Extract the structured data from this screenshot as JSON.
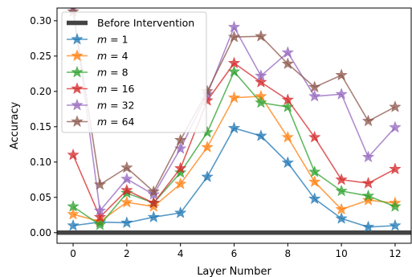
{
  "chart_data": {
    "type": "line",
    "title": "",
    "xlabel": "Layer Number",
    "ylabel": "Accuracy",
    "xlim": [
      -0.6,
      12.6
    ],
    "ylim": [
      -0.015,
      0.318
    ],
    "xticks": [
      0,
      2,
      4,
      6,
      8,
      10,
      12
    ],
    "yticks": [
      0.0,
      0.05,
      0.1,
      0.15,
      0.2,
      0.25,
      0.3
    ],
    "ytick_labels": [
      "0.00",
      "0.05",
      "0.10",
      "0.15",
      "0.20",
      "0.25",
      "0.30"
    ],
    "legend_position": "top-left",
    "baseline": {
      "name": "Before Intervention",
      "value": 0.0,
      "color": "#444444"
    },
    "x": [
      0,
      1,
      2,
      3,
      4,
      5,
      6,
      7,
      8,
      9,
      10,
      11,
      12
    ],
    "series": [
      {
        "name": "m = 1",
        "color": "#1f77b4",
        "values": [
          0.01,
          0.015,
          0.014,
          0.022,
          0.028,
          0.079,
          0.148,
          0.137,
          0.099,
          0.048,
          0.02,
          0.008,
          0.01
        ]
      },
      {
        "name": "m = 4",
        "color": "#ff7f0e",
        "values": [
          0.026,
          0.016,
          0.043,
          0.037,
          0.069,
          0.121,
          0.191,
          0.193,
          0.135,
          0.072,
          0.033,
          0.046,
          0.042
        ]
      },
      {
        "name": "m = 8",
        "color": "#2ca02c",
        "values": [
          0.037,
          0.011,
          0.056,
          0.042,
          0.085,
          0.142,
          0.228,
          0.184,
          0.178,
          0.086,
          0.059,
          0.052,
          0.037
        ]
      },
      {
        "name": "m = 16",
        "color": "#d62728",
        "values": [
          0.11,
          0.022,
          0.06,
          0.042,
          0.091,
          0.187,
          0.24,
          0.213,
          0.188,
          0.135,
          0.075,
          0.07,
          0.09
        ]
      },
      {
        "name": "m = 32",
        "color": "#9467bd",
        "values": [
          0.318,
          0.031,
          0.076,
          0.054,
          0.119,
          0.196,
          0.291,
          0.222,
          0.255,
          0.193,
          0.196,
          0.107,
          0.149
        ]
      },
      {
        "name": "m = 64",
        "color": "#8c564b",
        "values": [
          0.313,
          0.068,
          0.092,
          0.058,
          0.131,
          0.2,
          0.277,
          0.278,
          0.239,
          0.206,
          0.223,
          0.158,
          0.178
        ]
      }
    ]
  }
}
